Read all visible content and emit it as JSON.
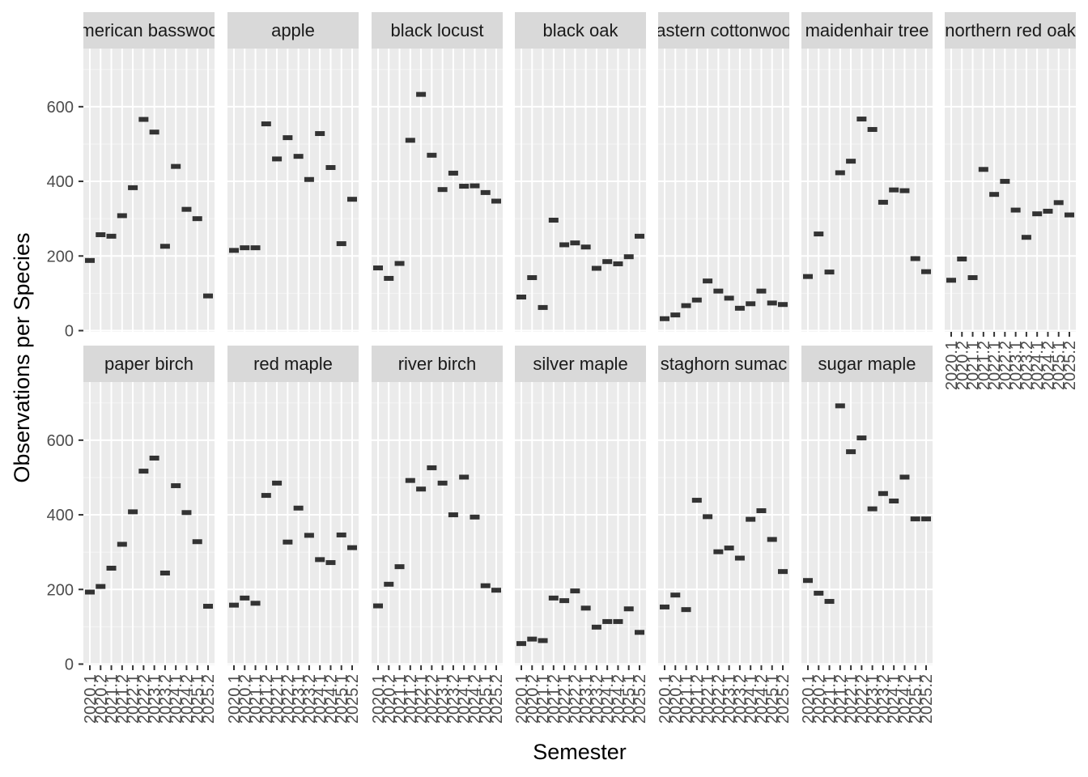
{
  "chart_data": {
    "type": "scatter",
    "xlabel": "Semester",
    "ylabel": "Observations per Species",
    "ylim": [
      0,
      720
    ],
    "yticks": [
      0,
      200,
      400,
      600
    ],
    "x": [
      "2020.1",
      "2020.2",
      "2021.1",
      "2021.2",
      "2022.1",
      "2022.2",
      "2023.1",
      "2023.2",
      "2024.1",
      "2024.2",
      "2025.1",
      "2025.2"
    ],
    "grid": true,
    "layout": "facet grid, 7 columns x 2 rows, shared y axis",
    "panels": [
      {
        "name": "american basswood",
        "values": [
          188,
          257,
          253,
          308,
          383,
          566,
          532,
          226,
          440,
          325,
          300,
          93
        ]
      },
      {
        "name": "apple",
        "values": [
          215,
          222,
          222,
          554,
          460,
          517,
          467,
          405,
          528,
          437,
          233,
          352
        ]
      },
      {
        "name": "black locust",
        "values": [
          168,
          140,
          180,
          510,
          633,
          470,
          378,
          422,
          387,
          388,
          370,
          347
        ]
      },
      {
        "name": "black oak",
        "values": [
          90,
          142,
          62,
          296,
          230,
          235,
          224,
          167,
          185,
          179,
          198,
          253
        ]
      },
      {
        "name": "eastern cottonwood",
        "values": [
          32,
          42,
          67,
          82,
          133,
          106,
          87,
          60,
          72,
          106,
          74,
          70
        ]
      },
      {
        "name": "maidenhair tree",
        "values": [
          145,
          259,
          157,
          423,
          454,
          567,
          539,
          344,
          377,
          375,
          193,
          158
        ]
      },
      {
        "name": "northern red oak",
        "values": [
          135,
          192,
          142,
          432,
          365,
          400,
          323,
          250,
          313,
          320,
          343,
          310
        ]
      },
      {
        "name": "paper birch",
        "values": [
          193,
          208,
          257,
          321,
          408,
          517,
          552,
          244,
          478,
          406,
          328,
          155
        ]
      },
      {
        "name": "red maple",
        "values": [
          158,
          177,
          163,
          452,
          485,
          327,
          418,
          345,
          280,
          272,
          346,
          312
        ]
      },
      {
        "name": "river birch",
        "values": [
          156,
          214,
          261,
          492,
          469,
          526,
          485,
          400,
          501,
          394,
          210,
          198
        ]
      },
      {
        "name": "silver maple",
        "values": [
          55,
          67,
          63,
          177,
          170,
          196,
          150,
          99,
          114,
          114,
          148,
          85
        ]
      },
      {
        "name": "staghorn sumac",
        "values": [
          153,
          185,
          146,
          439,
          395,
          301,
          311,
          284,
          388,
          411,
          334,
          248
        ]
      },
      {
        "name": "sugar maple",
        "values": [
          224,
          190,
          168,
          692,
          569,
          606,
          416,
          457,
          437,
          501,
          389,
          389
        ]
      }
    ]
  }
}
